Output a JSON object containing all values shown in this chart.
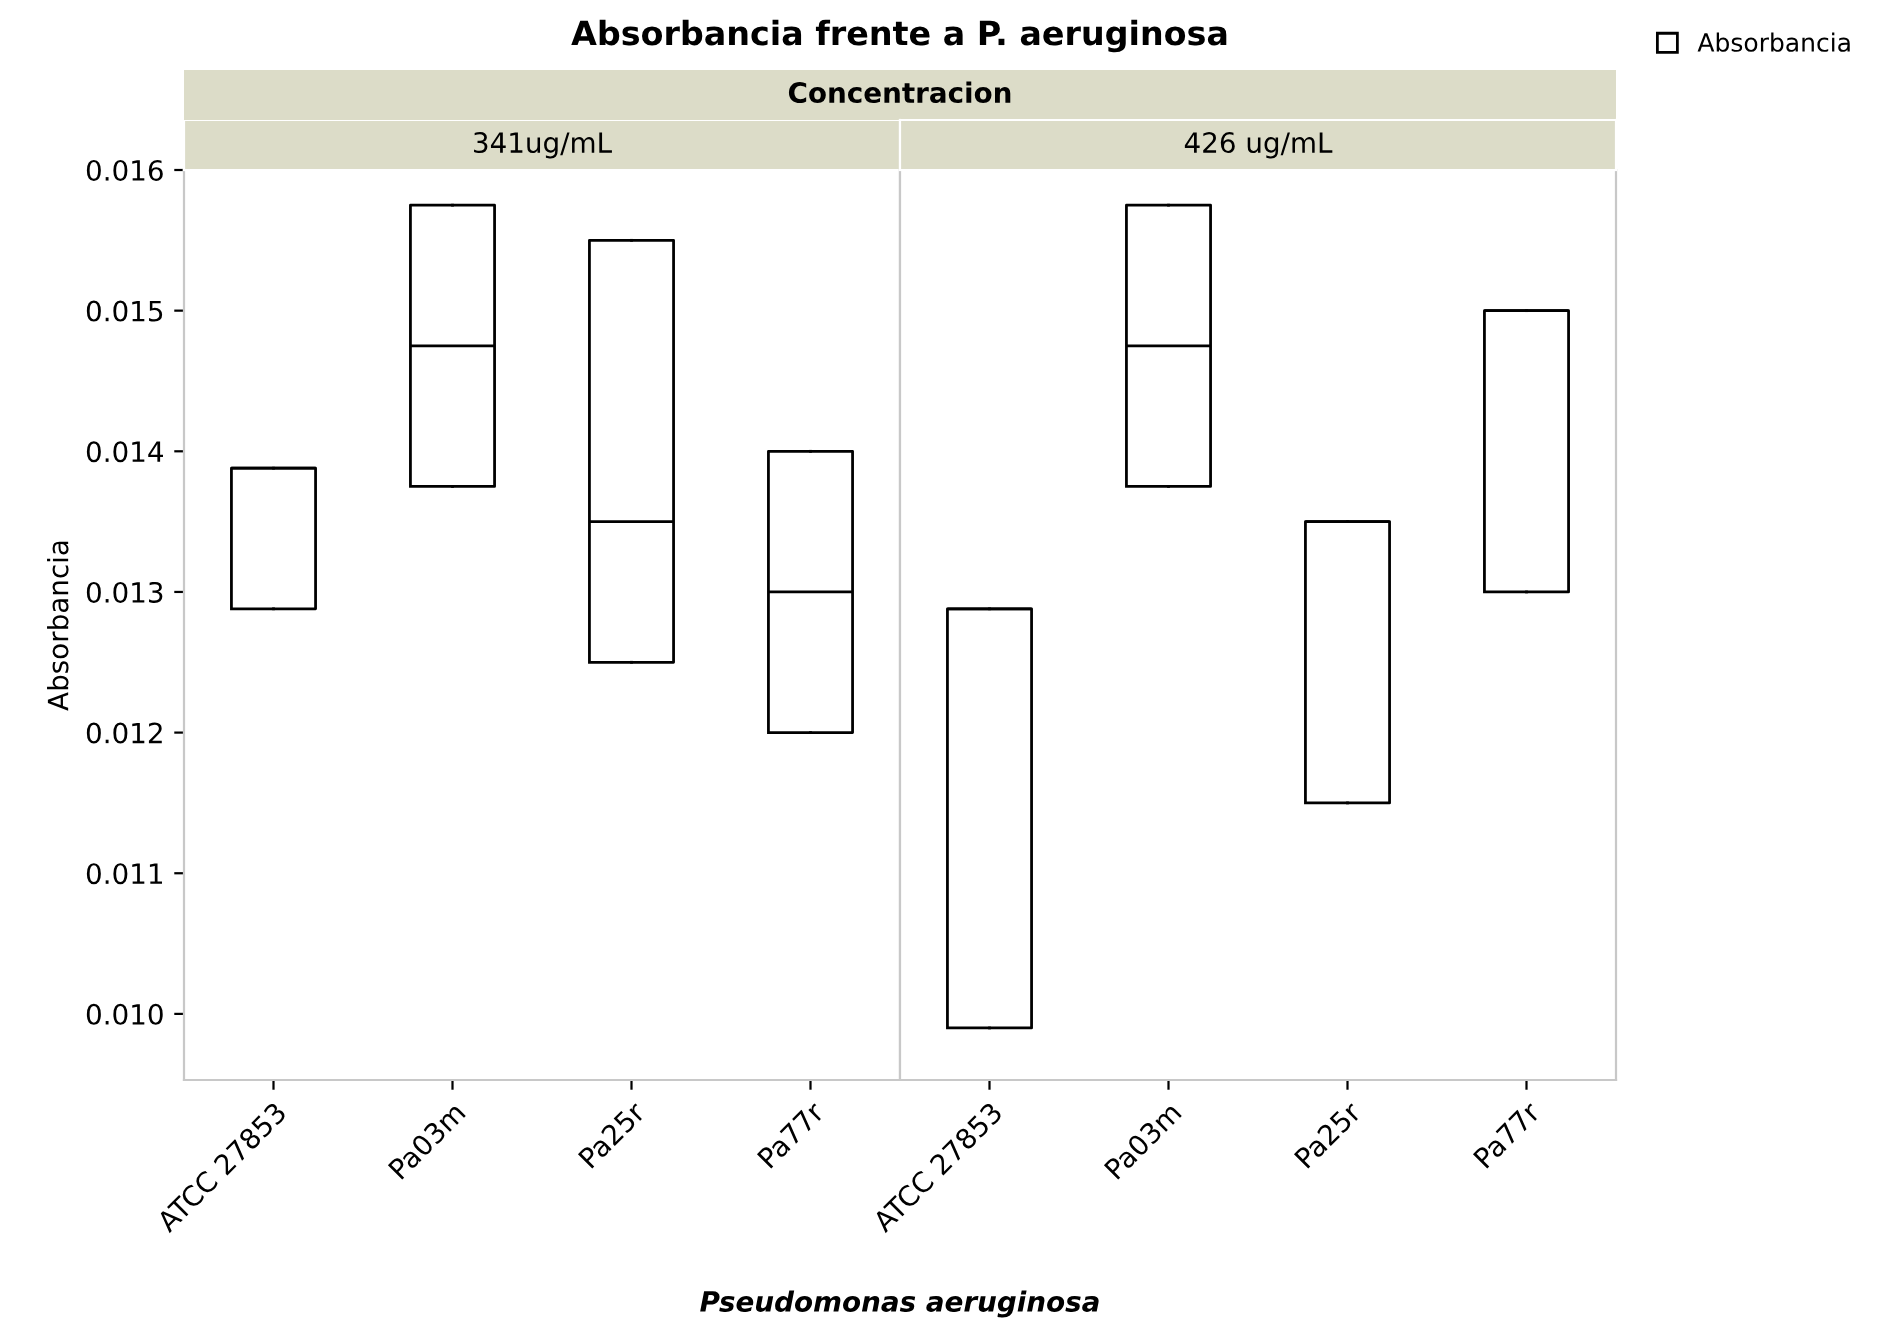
{
  "chart_data": [
    {
      "type": "box",
      "title": "Absorbancia frente a P. aeruginosa",
      "annotations": [
        "Concentracion"
      ],
      "subtitle": "341ug/mL",
      "xlabel": "Pseudomonas aeruginosa",
      "ylabel": "Absorbancia",
      "legend": "top right",
      "grid": false,
      "categories": [
        "ATCC 27853",
        "Pa03m",
        "Pa25r",
        "Pa77r"
      ],
      "ylim": [
        0.00953,
        0.016
      ],
      "yticks": [
        {
          "value": 0.01,
          "label": "0.010"
        },
        {
          "value": 0.011,
          "label": "0.011"
        },
        {
          "value": 0.012,
          "label": "0.012"
        },
        {
          "value": 0.013,
          "label": "0.013"
        },
        {
          "value": 0.014,
          "label": "0.014"
        },
        {
          "value": 0.015,
          "label": "0.015"
        },
        {
          "value": 0.016,
          "label": "0.016"
        }
      ],
      "series": [
        {
          "name": "Absorbancia",
          "color": "#000000",
          "boxes": [
            {
              "low": 0.01288,
              "q1": 0.01288,
              "median": 0.01388,
              "q3": 0.01388,
              "high": 0.01388
            },
            {
              "low": 0.01375,
              "q1": 0.01375,
              "median": 0.01475,
              "q3": 0.01575,
              "high": 0.01575
            },
            {
              "low": 0.0125,
              "q1": 0.0125,
              "median": 0.0135,
              "q3": 0.0155,
              "high": 0.0155
            },
            {
              "low": 0.012,
              "q1": 0.012,
              "median": 0.013,
              "q3": 0.014,
              "high": 0.014
            }
          ]
        }
      ]
    },
    {
      "type": "box",
      "subtitle": "426 ug/mL",
      "tick_labels": "x",
      "grid": false,
      "categories": [
        "ATCC 27853",
        "Pa03m",
        "Pa25r",
        "Pa77r"
      ],
      "ylim": [
        0.00953,
        0.016
      ],
      "series": [
        {
          "color": "#000000",
          "boxes": [
            {
              "low": 0.0099,
              "q1": 0.0099,
              "median": 0.01288,
              "q3": 0.01288,
              "high": 0.01288
            },
            {
              "low": 0.01375,
              "q1": 0.01375,
              "median": 0.01475,
              "q3": 0.01575,
              "high": 0.01575
            },
            {
              "low": 0.0115,
              "q1": 0.0115,
              "median": 0.0135,
              "q3": 0.0135,
              "high": 0.0135
            },
            {
              "low": 0.013,
              "q1": 0.013,
              "median": 0.015,
              "q3": 0.015,
              "high": 0.015
            }
          ]
        }
      ]
    }
  ]
}
